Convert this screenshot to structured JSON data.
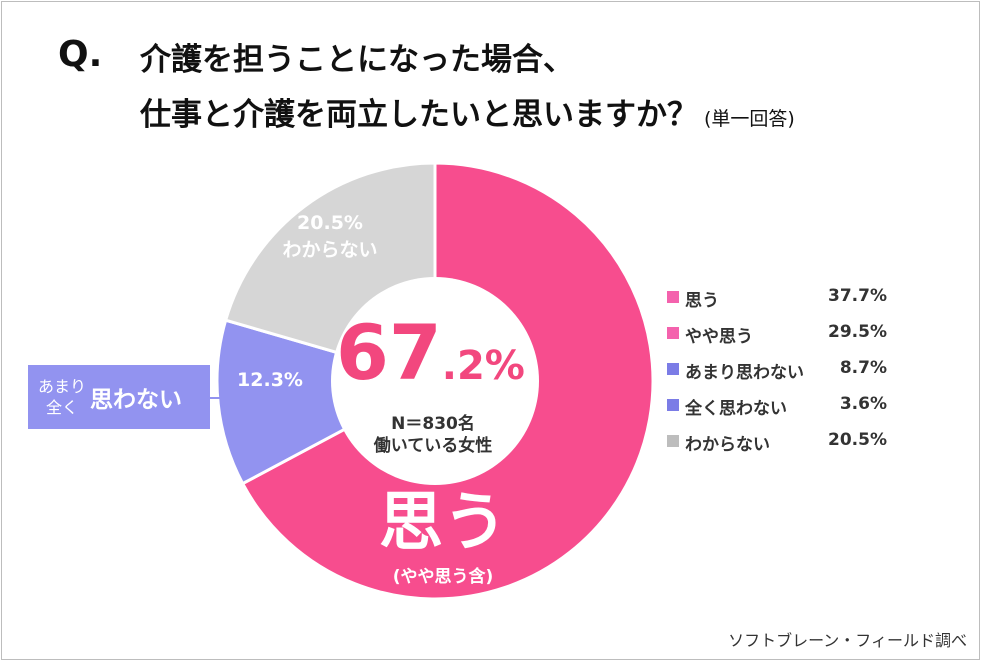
{
  "title": {
    "q": "Q.",
    "line1": "介護を担うことになった場合、",
    "line2": "仕事と介護を両立したいと思いますか？",
    "note": "(単一回答)"
  },
  "center": {
    "int_part": "67",
    "dec_part": ".2%",
    "sample": "N＝830名",
    "population": "働いている女性"
  },
  "segment_labels": {
    "dont_know_value": "20.5%",
    "dont_know_name": "わからない",
    "negative_value": "12.3%",
    "positive_name": "思う",
    "positive_sub": "(やや思う含)"
  },
  "callout": {
    "small_line1": "あまり",
    "small_line2": "全く",
    "big": "思わない"
  },
  "source": "ソフトブレーン・フィールド調べ",
  "colors": {
    "positive": "#f74d8e",
    "negative": "#9293f0",
    "dont_know": "#d6d6d6",
    "center_text": "#f2477e"
  },
  "chart_data": {
    "type": "pie",
    "donut": true,
    "segments": [
      {
        "name": "思う(やや思う含)",
        "value": 67.2
      },
      {
        "name": "あまり/全く思わない",
        "value": 12.3
      },
      {
        "name": "わからない",
        "value": 20.5
      }
    ],
    "legend": [
      {
        "name": "思う",
        "value": 37.7,
        "label": "37.7%",
        "color": "#f462ad"
      },
      {
        "name": "やや思う",
        "value": 29.5,
        "label": "29.5%",
        "color": "#f462ad"
      },
      {
        "name": "あまり思わない",
        "value": 8.7,
        "label": "8.7%",
        "color": "#7b7ce6"
      },
      {
        "name": "全く思わない",
        "value": 3.6,
        "label": "3.6%",
        "color": "#7b7ce6"
      },
      {
        "name": "わからない",
        "value": 20.5,
        "label": "20.5%",
        "color": "#bdbdbd"
      }
    ],
    "legend_position": "right"
  }
}
